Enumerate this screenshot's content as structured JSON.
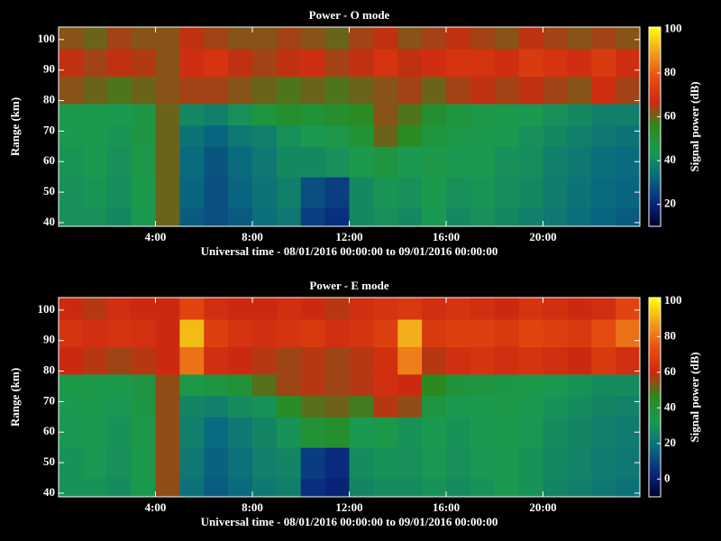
{
  "chart_data": [
    {
      "type": "heatmap",
      "title": "Power - O mode",
      "xlabel": "Universal time - 08/01/2016 00:00:00 to 09/01/2016 00:00:00",
      "ylabel": "Range (km)",
      "colorbar_label": "Signal power (dB)",
      "x_bins": [
        0,
        1,
        2,
        3,
        4,
        5,
        6,
        7,
        8,
        9,
        10,
        11,
        12,
        13,
        14,
        15,
        16,
        17,
        18,
        19,
        20,
        21,
        22,
        23,
        24
      ],
      "y_bins": [
        38.8,
        45,
        55,
        65,
        72,
        79,
        88,
        97,
        104.1
      ],
      "values": [
        [
          42,
          42,
          40,
          44,
          60,
          30,
          28,
          30,
          34,
          36,
          25,
          22,
          40,
          42,
          40,
          44,
          40,
          42,
          40,
          38,
          36,
          34,
          32,
          30
        ],
        [
          42,
          43,
          41,
          45,
          60,
          32,
          28,
          32,
          35,
          38,
          28,
          25,
          40,
          43,
          42,
          45,
          42,
          43,
          41,
          40,
          37,
          35,
          33,
          32
        ],
        [
          43,
          44,
          42,
          46,
          60,
          33,
          29,
          33,
          36,
          40,
          40,
          42,
          45,
          48,
          44,
          46,
          44,
          44,
          42,
          41,
          38,
          36,
          34,
          33
        ],
        [
          44,
          45,
          43,
          47,
          60,
          35,
          32,
          36,
          38,
          42,
          44,
          46,
          50,
          60,
          55,
          48,
          46,
          45,
          44,
          42,
          40,
          38,
          36,
          35
        ],
        [
          45,
          45,
          44,
          47,
          60,
          40,
          38,
          42,
          48,
          52,
          50,
          52,
          55,
          62,
          58,
          52,
          48,
          46,
          45,
          44,
          42,
          40,
          38,
          38
        ],
        [
          62,
          60,
          58,
          60,
          62,
          64,
          64,
          62,
          60,
          58,
          60,
          58,
          60,
          62,
          64,
          60,
          64,
          66,
          64,
          66,
          64,
          62,
          68,
          64
        ],
        [
          66,
          64,
          66,
          65,
          62,
          68,
          70,
          66,
          64,
          66,
          68,
          64,
          66,
          70,
          66,
          68,
          70,
          70,
          68,
          72,
          70,
          68,
          72,
          68
        ],
        [
          62,
          60,
          64,
          62,
          62,
          66,
          64,
          62,
          62,
          64,
          62,
          60,
          64,
          66,
          62,
          64,
          66,
          64,
          62,
          66,
          64,
          62,
          64,
          62
        ]
      ],
      "xlim": [
        0,
        24
      ],
      "ylim": [
        38.8,
        104.1
      ],
      "xticks": [
        {
          "value": 4,
          "label": "4:00"
        },
        {
          "value": 8,
          "label": "8:00"
        },
        {
          "value": 12,
          "label": "12:00"
        },
        {
          "value": 16,
          "label": "16:00"
        },
        {
          "value": 20,
          "label": "20:00"
        }
      ],
      "yticks": [
        40,
        50,
        60,
        70,
        80,
        90,
        100
      ],
      "clim": [
        10,
        101
      ],
      "cticks": [
        20,
        40,
        60,
        80,
        100
      ],
      "colormap": [
        "#000030",
        "#0a2a80",
        "#0a6a80",
        "#1a9a50",
        "#2a8a20",
        "#cc2a10",
        "#e85010",
        "#f0a020",
        "#ffff00"
      ]
    },
    {
      "type": "heatmap",
      "title": "Power - E mode",
      "xlabel": "Universal time - 08/01/2016 00:00:00 to 09/01/2016 00:00:00",
      "ylabel": "Range (km)",
      "colorbar_label": "Signal power (dB)",
      "x_bins": [
        0,
        1,
        2,
        3,
        4,
        5,
        6,
        7,
        8,
        9,
        10,
        11,
        12,
        13,
        14,
        15,
        16,
        17,
        18,
        19,
        20,
        21,
        22,
        23,
        24
      ],
      "y_bins": [
        38.8,
        45,
        55,
        65,
        72,
        79,
        88,
        97,
        104.1
      ],
      "values": [
        [
          30,
          30,
          28,
          32,
          55,
          20,
          15,
          18,
          22,
          24,
          5,
          2,
          26,
          28,
          28,
          30,
          28,
          30,
          32,
          30,
          26,
          24,
          22,
          20
        ],
        [
          30,
          31,
          29,
          33,
          55,
          22,
          16,
          20,
          24,
          26,
          8,
          4,
          28,
          30,
          29,
          31,
          29,
          31,
          32,
          30,
          27,
          25,
          23,
          22
        ],
        [
          31,
          32,
          30,
          34,
          55,
          24,
          18,
          22,
          26,
          30,
          40,
          42,
          32,
          34,
          30,
          32,
          30,
          32,
          33,
          31,
          28,
          26,
          24,
          23
        ],
        [
          32,
          33,
          31,
          35,
          55,
          26,
          24,
          28,
          30,
          44,
          50,
          52,
          48,
          58,
          55,
          36,
          32,
          33,
          34,
          32,
          30,
          28,
          26,
          25
        ],
        [
          34,
          34,
          33,
          36,
          55,
          34,
          36,
          40,
          50,
          56,
          58,
          56,
          58,
          62,
          60,
          46,
          38,
          36,
          35,
          34,
          32,
          30,
          28,
          28
        ],
        [
          60,
          58,
          56,
          58,
          60,
          80,
          62,
          60,
          58,
          56,
          58,
          56,
          58,
          62,
          82,
          58,
          62,
          64,
          62,
          64,
          62,
          60,
          66,
          62
        ],
        [
          64,
          62,
          64,
          63,
          60,
          92,
          68,
          64,
          62,
          64,
          66,
          62,
          64,
          68,
          90,
          66,
          68,
          68,
          66,
          70,
          68,
          66,
          72,
          80
        ],
        [
          60,
          58,
          62,
          60,
          60,
          70,
          62,
          60,
          60,
          62,
          60,
          58,
          62,
          64,
          66,
          62,
          64,
          62,
          60,
          64,
          62,
          60,
          62,
          70
        ]
      ],
      "xlim": [
        0,
        24
      ],
      "ylim": [
        38.8,
        104.1
      ],
      "xticks": [
        {
          "value": 4,
          "label": "4:00"
        },
        {
          "value": 8,
          "label": "8:00"
        },
        {
          "value": 12,
          "label": "12:00"
        },
        {
          "value": 16,
          "label": "16:00"
        },
        {
          "value": 20,
          "label": "20:00"
        }
      ],
      "yticks": [
        40,
        50,
        60,
        70,
        80,
        90,
        100
      ],
      "clim": [
        -10,
        102
      ],
      "cticks": [
        0,
        20,
        40,
        60,
        80,
        100
      ],
      "colormap": [
        "#000030",
        "#0a2a80",
        "#0a6a80",
        "#1a9a50",
        "#2a8a20",
        "#cc2a10",
        "#e85010",
        "#f0a020",
        "#ffff00"
      ]
    }
  ]
}
